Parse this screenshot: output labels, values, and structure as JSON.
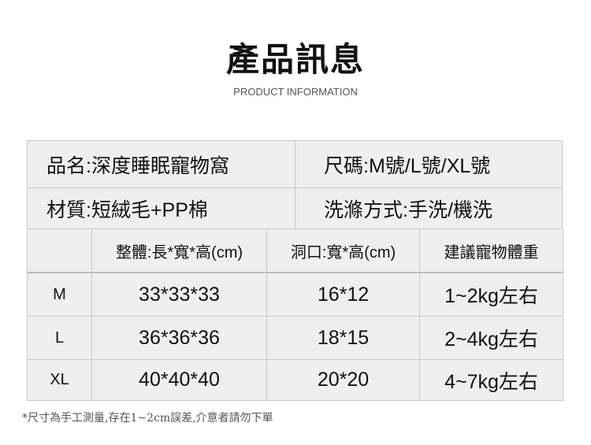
{
  "title": "產品訊息",
  "subtitle": "PRODUCT INFORMATION",
  "info": {
    "name": "品名:深度睡眠寵物窩",
    "size": "尺碼:M號/L號/XL號",
    "material": "材質:短絨毛+PP棉",
    "wash": "洗滌方式:手洗/機洗"
  },
  "table": {
    "headers": [
      "",
      "整體:長*寬*高(cm)",
      "洞口:寬*高(cm)",
      "建議寵物體重"
    ],
    "rows": [
      [
        "M",
        "33*33*33",
        "16*12",
        "1~2kg左右"
      ],
      [
        "L",
        "36*36*36",
        "18*15",
        "2~4kg左右"
      ],
      [
        "XL",
        "40*40*40",
        "20*20",
        "4~7kg左右"
      ]
    ]
  },
  "note": "*尺寸為手工測量,存在1~2cm誤差,介意者請勿下單"
}
